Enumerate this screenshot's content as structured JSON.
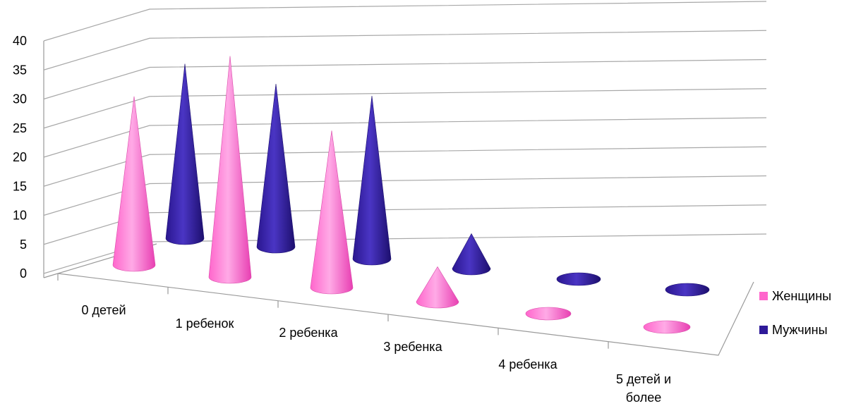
{
  "chart_data": {
    "type": "bar",
    "bar_shape": "cone",
    "three_d": true,
    "categories": [
      "0 детей",
      "1 ребенок",
      "2 ребенка",
      "3 ребенка",
      "4 ребенка",
      "5 детей и более"
    ],
    "series": [
      {
        "name": "Женщины",
        "color": "#ff66cc",
        "values": [
          29,
          38,
          27,
          6,
          0,
          0
        ]
      },
      {
        "name": "Мужчины",
        "color": "#2e1a99",
        "values": [
          30,
          28,
          28,
          6,
          0,
          0
        ]
      }
    ],
    "ylim": [
      0,
      40
    ],
    "yticks": [
      0,
      5,
      10,
      15,
      20,
      25,
      30,
      35,
      40
    ],
    "grid": true,
    "legend": "right"
  }
}
